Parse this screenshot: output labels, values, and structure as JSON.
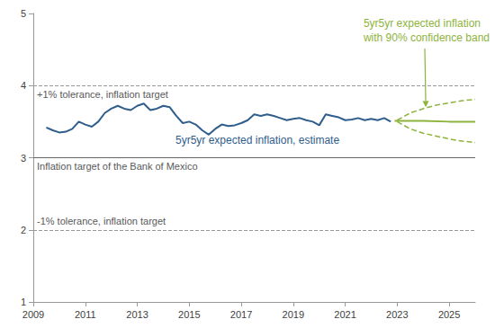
{
  "chart_data": {
    "type": "line",
    "xlim": [
      2009,
      2026
    ],
    "xticks": [
      2009,
      2011,
      2013,
      2015,
      2017,
      2019,
      2021,
      2023,
      2025
    ],
    "ylim": [
      1,
      5
    ],
    "yticks": [
      1,
      2,
      3,
      4,
      5
    ],
    "grid": false,
    "series": [
      {
        "name": "5yr5yr expected inflation, estimate",
        "color": "#2f5d8c",
        "line_style": "solid",
        "x": [
          2009.5,
          2009.75,
          2010.0,
          2010.25,
          2010.5,
          2010.75,
          2011.0,
          2011.25,
          2011.5,
          2011.75,
          2012.0,
          2012.25,
          2012.5,
          2012.75,
          2013.0,
          2013.25,
          2013.5,
          2013.75,
          2014.0,
          2014.25,
          2014.5,
          2014.75,
          2015.0,
          2015.25,
          2015.5,
          2015.75,
          2016.0,
          2016.25,
          2016.5,
          2016.75,
          2017.0,
          2017.25,
          2017.5,
          2017.75,
          2018.0,
          2018.25,
          2018.5,
          2018.75,
          2019.0,
          2019.25,
          2019.5,
          2019.75,
          2020.0,
          2020.25,
          2020.5,
          2020.75,
          2021.0,
          2021.25,
          2021.5,
          2021.75,
          2022.0,
          2022.25,
          2022.5,
          2022.75
        ],
        "values": [
          3.42,
          3.38,
          3.35,
          3.36,
          3.4,
          3.5,
          3.46,
          3.43,
          3.5,
          3.62,
          3.68,
          3.72,
          3.68,
          3.66,
          3.72,
          3.75,
          3.66,
          3.68,
          3.72,
          3.7,
          3.58,
          3.48,
          3.5,
          3.46,
          3.38,
          3.32,
          3.4,
          3.46,
          3.44,
          3.45,
          3.48,
          3.52,
          3.6,
          3.58,
          3.6,
          3.58,
          3.55,
          3.52,
          3.54,
          3.55,
          3.52,
          3.5,
          3.45,
          3.6,
          3.58,
          3.56,
          3.52,
          3.53,
          3.55,
          3.52,
          3.54,
          3.52,
          3.55,
          3.5
        ]
      },
      {
        "name": "5yr5yr expected inflation with 90% confidence band",
        "color": "#8db33c",
        "line_style": "solid",
        "x": [
          2022.9,
          2024,
          2025,
          2026
        ],
        "values": [
          3.51,
          3.51,
          3.5,
          3.5
        ]
      },
      {
        "color": "#8db33c",
        "line_style": "dashed",
        "x": [
          2023,
          2023.5,
          2024,
          2024.5,
          2025,
          2025.5,
          2026
        ],
        "values": [
          3.52,
          3.62,
          3.68,
          3.73,
          3.76,
          3.79,
          3.81
        ]
      },
      {
        "color": "#8db33c",
        "line_style": "dashed",
        "x": [
          2023,
          2023.5,
          2024,
          2024.5,
          2025,
          2025.5,
          2026
        ],
        "values": [
          3.5,
          3.4,
          3.34,
          3.3,
          3.26,
          3.23,
          3.21
        ]
      }
    ],
    "reference_lines": [
      {
        "value": 4,
        "label": "+1% tolerance, inflation target",
        "line_style": "dashed",
        "color": "#999999"
      },
      {
        "value": 3,
        "label": "Inflation target of the Bank of Mexico",
        "line_style": "solid",
        "color": "#666666"
      },
      {
        "value": 2,
        "label": "-1% tolerance, inflation target",
        "line_style": "dashed",
        "color": "#999999"
      }
    ]
  }
}
